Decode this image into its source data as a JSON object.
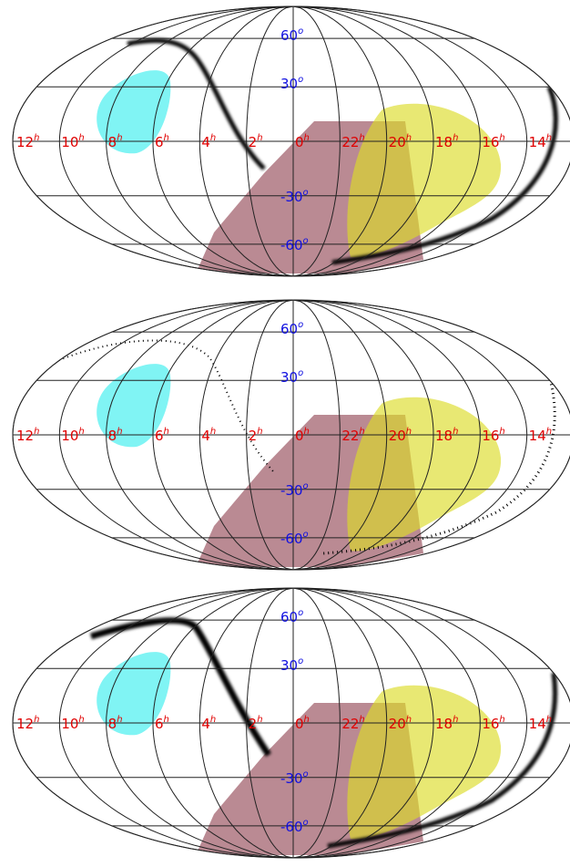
{
  "ra_unit": "h",
  "dec_unit": "o",
  "ra_labels": [
    "12",
    "10",
    "8",
    "6",
    "4",
    "2",
    "0",
    "22",
    "20",
    "18",
    "16",
    "14"
  ],
  "dec_labels": [
    "60",
    "30",
    "-30",
    "-60"
  ]
}
